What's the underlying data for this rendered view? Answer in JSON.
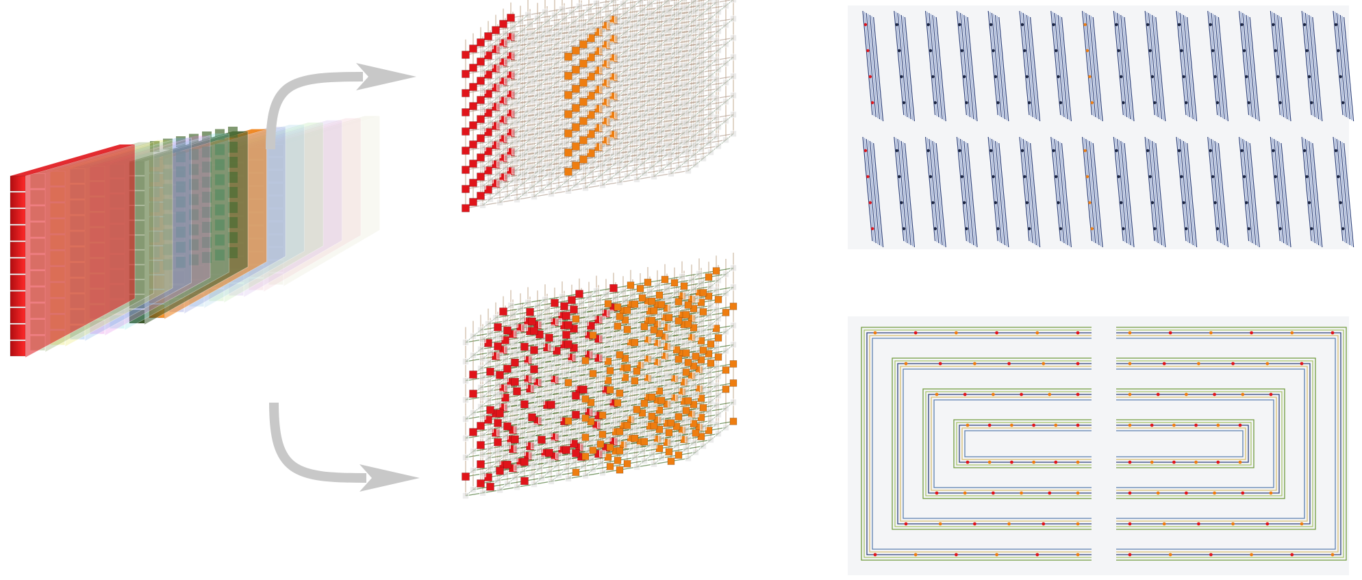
{
  "figure": {
    "source_stack": {
      "slices": [
        {
          "role": "red-slab",
          "color": "#e0141a"
        },
        {
          "role": "slice",
          "color": "#6e8f3a"
        },
        {
          "role": "slice",
          "color": "#e6e24a"
        },
        {
          "role": "slice",
          "color": "#6aa6e6"
        },
        {
          "role": "slice",
          "color": "#e27ae6"
        },
        {
          "role": "slice",
          "color": "#7fe0e6"
        },
        {
          "role": "green-slab",
          "color": "#3d5b2c"
        },
        {
          "role": "orange-slab",
          "color": "#ee7d10"
        },
        {
          "role": "slice",
          "color": "#7b86d6"
        },
        {
          "role": "slice",
          "color": "#9fd0e6"
        },
        {
          "role": "slice",
          "color": "#b7e6a6"
        },
        {
          "role": "slice",
          "color": "#cfb6ea"
        },
        {
          "role": "slice",
          "color": "#f0c4cc"
        },
        {
          "role": "slice",
          "color": "#e4e4cc"
        }
      ]
    },
    "arrows": [
      {
        "name": "arrow-to-top-lattice",
        "color": "#c8c8c8"
      },
      {
        "name": "arrow-to-bottom-lattice",
        "color": "#c8c8c8"
      }
    ],
    "lattices": [
      {
        "name": "top-lattice",
        "highlight": [
          "red-front-column",
          "orange-inner-slab"
        ]
      },
      {
        "name": "bottom-lattice",
        "highlight": [
          "red-scattered",
          "orange-scattered"
        ]
      }
    ],
    "layouts": [
      {
        "name": "column-layout",
        "columns": 16,
        "rows": 2,
        "line_color": "#2b3f7a",
        "accent": [
          "#e0141a",
          "#ee7d10"
        ]
      },
      {
        "name": "spiral-layout",
        "rings": 4,
        "halves": 2,
        "line_color": "#7aa04a",
        "accent": [
          "#e0141a",
          "#ee7d10"
        ]
      }
    ]
  }
}
